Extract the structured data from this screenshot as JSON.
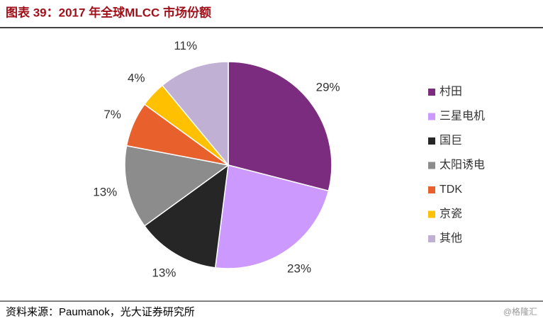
{
  "chart_data": {
    "type": "pie",
    "title": "图表 39：2017 年全球MLCC 市场份额",
    "categories": [
      "村田",
      "三星电机",
      "国巨",
      "太阳诱电",
      "TDK",
      "京瓷",
      "其他"
    ],
    "values": [
      29,
      23,
      13,
      13,
      7,
      4,
      11
    ],
    "value_labels": [
      "29%",
      "23%",
      "13%",
      "13%",
      "7%",
      "4%",
      "11%"
    ],
    "colors": [
      "#7B2C7E",
      "#CC99FF",
      "#262626",
      "#8C8C8C",
      "#E8602C",
      "#FFC000",
      "#BFB0D4"
    ],
    "legend": "right"
  },
  "footer": {
    "source": "资料来源：Paumanok，光大证券研究所",
    "watermark": "@格隆汇"
  }
}
